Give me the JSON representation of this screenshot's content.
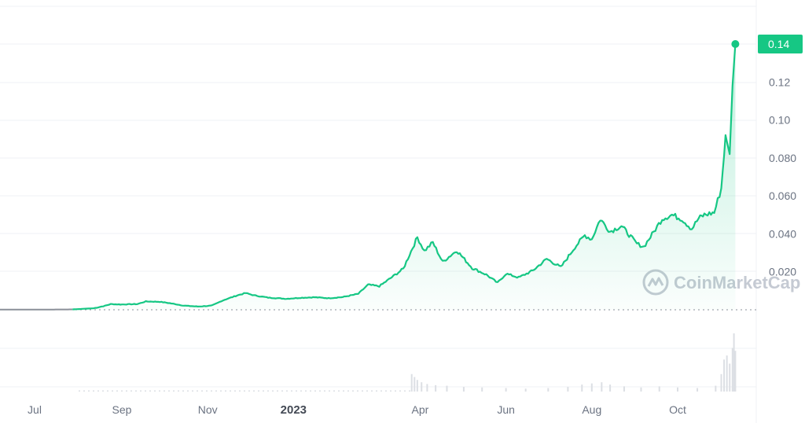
{
  "watermark": "CoinMarketCap",
  "colors": {
    "line": "#16c784",
    "baseline": "#8a8f99",
    "grid": "#eff1f4",
    "text": "#6b7382",
    "volume": "#dcdfe4"
  },
  "chart_data": {
    "type": "area",
    "x_ticks": [
      {
        "label": "Jul",
        "date": "2022-07-01",
        "bold": false
      },
      {
        "label": "Sep",
        "date": "2022-09-01",
        "bold": false
      },
      {
        "label": "Nov",
        "date": "2022-11-01",
        "bold": false
      },
      {
        "label": "2023",
        "date": "2023-01-01",
        "bold": true
      },
      {
        "label": "Apr",
        "date": "2023-04-01",
        "bold": false
      },
      {
        "label": "Jun",
        "date": "2023-06-01",
        "bold": false
      },
      {
        "label": "Aug",
        "date": "2023-08-01",
        "bold": false
      },
      {
        "label": "Oct",
        "date": "2023-10-01",
        "bold": false
      }
    ],
    "y_ticks": [
      "0.020",
      "0.040",
      "0.060",
      "0.080",
      "0.10",
      "0.12",
      "0.14"
    ],
    "ylim": [
      0,
      0.14
    ],
    "baseline_value": 0,
    "current_price_label": "0.14",
    "series": [
      {
        "values": [
          [
            "2022-06-03",
            0.0001
          ],
          [
            "2022-07-05",
            0.0001
          ],
          [
            "2022-07-28",
            0.0002
          ],
          [
            "2022-08-12",
            0.0008
          ],
          [
            "2022-08-20",
            0.0021
          ],
          [
            "2022-08-24",
            0.003
          ],
          [
            "2022-08-31",
            0.0028
          ],
          [
            "2022-09-12",
            0.003
          ],
          [
            "2022-09-18",
            0.0044
          ],
          [
            "2022-09-28",
            0.0042
          ],
          [
            "2022-10-05",
            0.0035
          ],
          [
            "2022-10-15",
            0.0022
          ],
          [
            "2022-10-25",
            0.0017
          ],
          [
            "2022-11-04",
            0.0022
          ],
          [
            "2022-11-12",
            0.005
          ],
          [
            "2022-11-22",
            0.0076
          ],
          [
            "2022-11-28",
            0.0088
          ],
          [
            "2022-12-04",
            0.0076
          ],
          [
            "2022-12-14",
            0.0064
          ],
          [
            "2022-12-27",
            0.0058
          ],
          [
            "2023-01-06",
            0.0063
          ],
          [
            "2023-01-16",
            0.0066
          ],
          [
            "2023-01-26",
            0.0061
          ],
          [
            "2023-02-05",
            0.0067
          ],
          [
            "2023-02-16",
            0.0084
          ],
          [
            "2023-02-23",
            0.0132
          ],
          [
            "2023-03-03",
            0.0124
          ],
          [
            "2023-03-12",
            0.0172
          ],
          [
            "2023-03-20",
            0.0216
          ],
          [
            "2023-03-30",
            0.0382
          ],
          [
            "2023-04-04",
            0.031
          ],
          [
            "2023-04-10",
            0.0355
          ],
          [
            "2023-04-17",
            0.0252
          ],
          [
            "2023-04-27",
            0.0312
          ],
          [
            "2023-05-08",
            0.022
          ],
          [
            "2023-05-18",
            0.0185
          ],
          [
            "2023-05-26",
            0.0142
          ],
          [
            "2023-06-01",
            0.019
          ],
          [
            "2023-06-10",
            0.017
          ],
          [
            "2023-06-20",
            0.0206
          ],
          [
            "2023-06-30",
            0.0268
          ],
          [
            "2023-07-10",
            0.0224
          ],
          [
            "2023-07-20",
            0.033
          ],
          [
            "2023-07-27",
            0.0392
          ],
          [
            "2023-08-01",
            0.0372
          ],
          [
            "2023-08-07",
            0.0478
          ],
          [
            "2023-08-14",
            0.0412
          ],
          [
            "2023-08-22",
            0.0442
          ],
          [
            "2023-09-02",
            0.0348
          ],
          [
            "2023-09-07",
            0.0332
          ],
          [
            "2023-09-14",
            0.041
          ],
          [
            "2023-09-20",
            0.048
          ],
          [
            "2023-09-27",
            0.05
          ],
          [
            "2023-10-04",
            0.0478
          ],
          [
            "2023-10-11",
            0.0426
          ],
          [
            "2023-10-16",
            0.0482
          ],
          [
            "2023-10-20",
            0.05
          ],
          [
            "2023-10-27",
            0.0512
          ],
          [
            "2023-11-01",
            0.064
          ],
          [
            "2023-11-04",
            0.092
          ],
          [
            "2023-11-07",
            0.082
          ],
          [
            "2023-11-09",
            0.118
          ],
          [
            "2023-11-11",
            0.14
          ]
        ]
      }
    ],
    "volume": [
      [
        "2023-03-26",
        0.3
      ],
      [
        "2023-03-28",
        0.25
      ],
      [
        "2023-03-30",
        0.2
      ],
      [
        "2023-04-02",
        0.16
      ],
      [
        "2023-04-06",
        0.13
      ],
      [
        "2023-04-12",
        0.11
      ],
      [
        "2023-04-20",
        0.1
      ],
      [
        "2023-05-02",
        0.08
      ],
      [
        "2023-05-15",
        0.07
      ],
      [
        "2023-06-01",
        0.06
      ],
      [
        "2023-06-15",
        0.05
      ],
      [
        "2023-07-01",
        0.06
      ],
      [
        "2023-07-15",
        0.08
      ],
      [
        "2023-07-25",
        0.12
      ],
      [
        "2023-08-01",
        0.14
      ],
      [
        "2023-08-08",
        0.16
      ],
      [
        "2023-08-14",
        0.12
      ],
      [
        "2023-08-24",
        0.09
      ],
      [
        "2023-09-05",
        0.07
      ],
      [
        "2023-09-18",
        0.09
      ],
      [
        "2023-10-01",
        0.07
      ],
      [
        "2023-10-15",
        0.06
      ],
      [
        "2023-10-28",
        0.1
      ],
      [
        "2023-11-01",
        0.3
      ],
      [
        "2023-11-03",
        0.55
      ],
      [
        "2023-11-05",
        0.62
      ],
      [
        "2023-11-07",
        0.48
      ],
      [
        "2023-11-09",
        0.75
      ],
      [
        "2023-11-10",
        1.0
      ],
      [
        "2023-11-11",
        0.7
      ]
    ]
  }
}
